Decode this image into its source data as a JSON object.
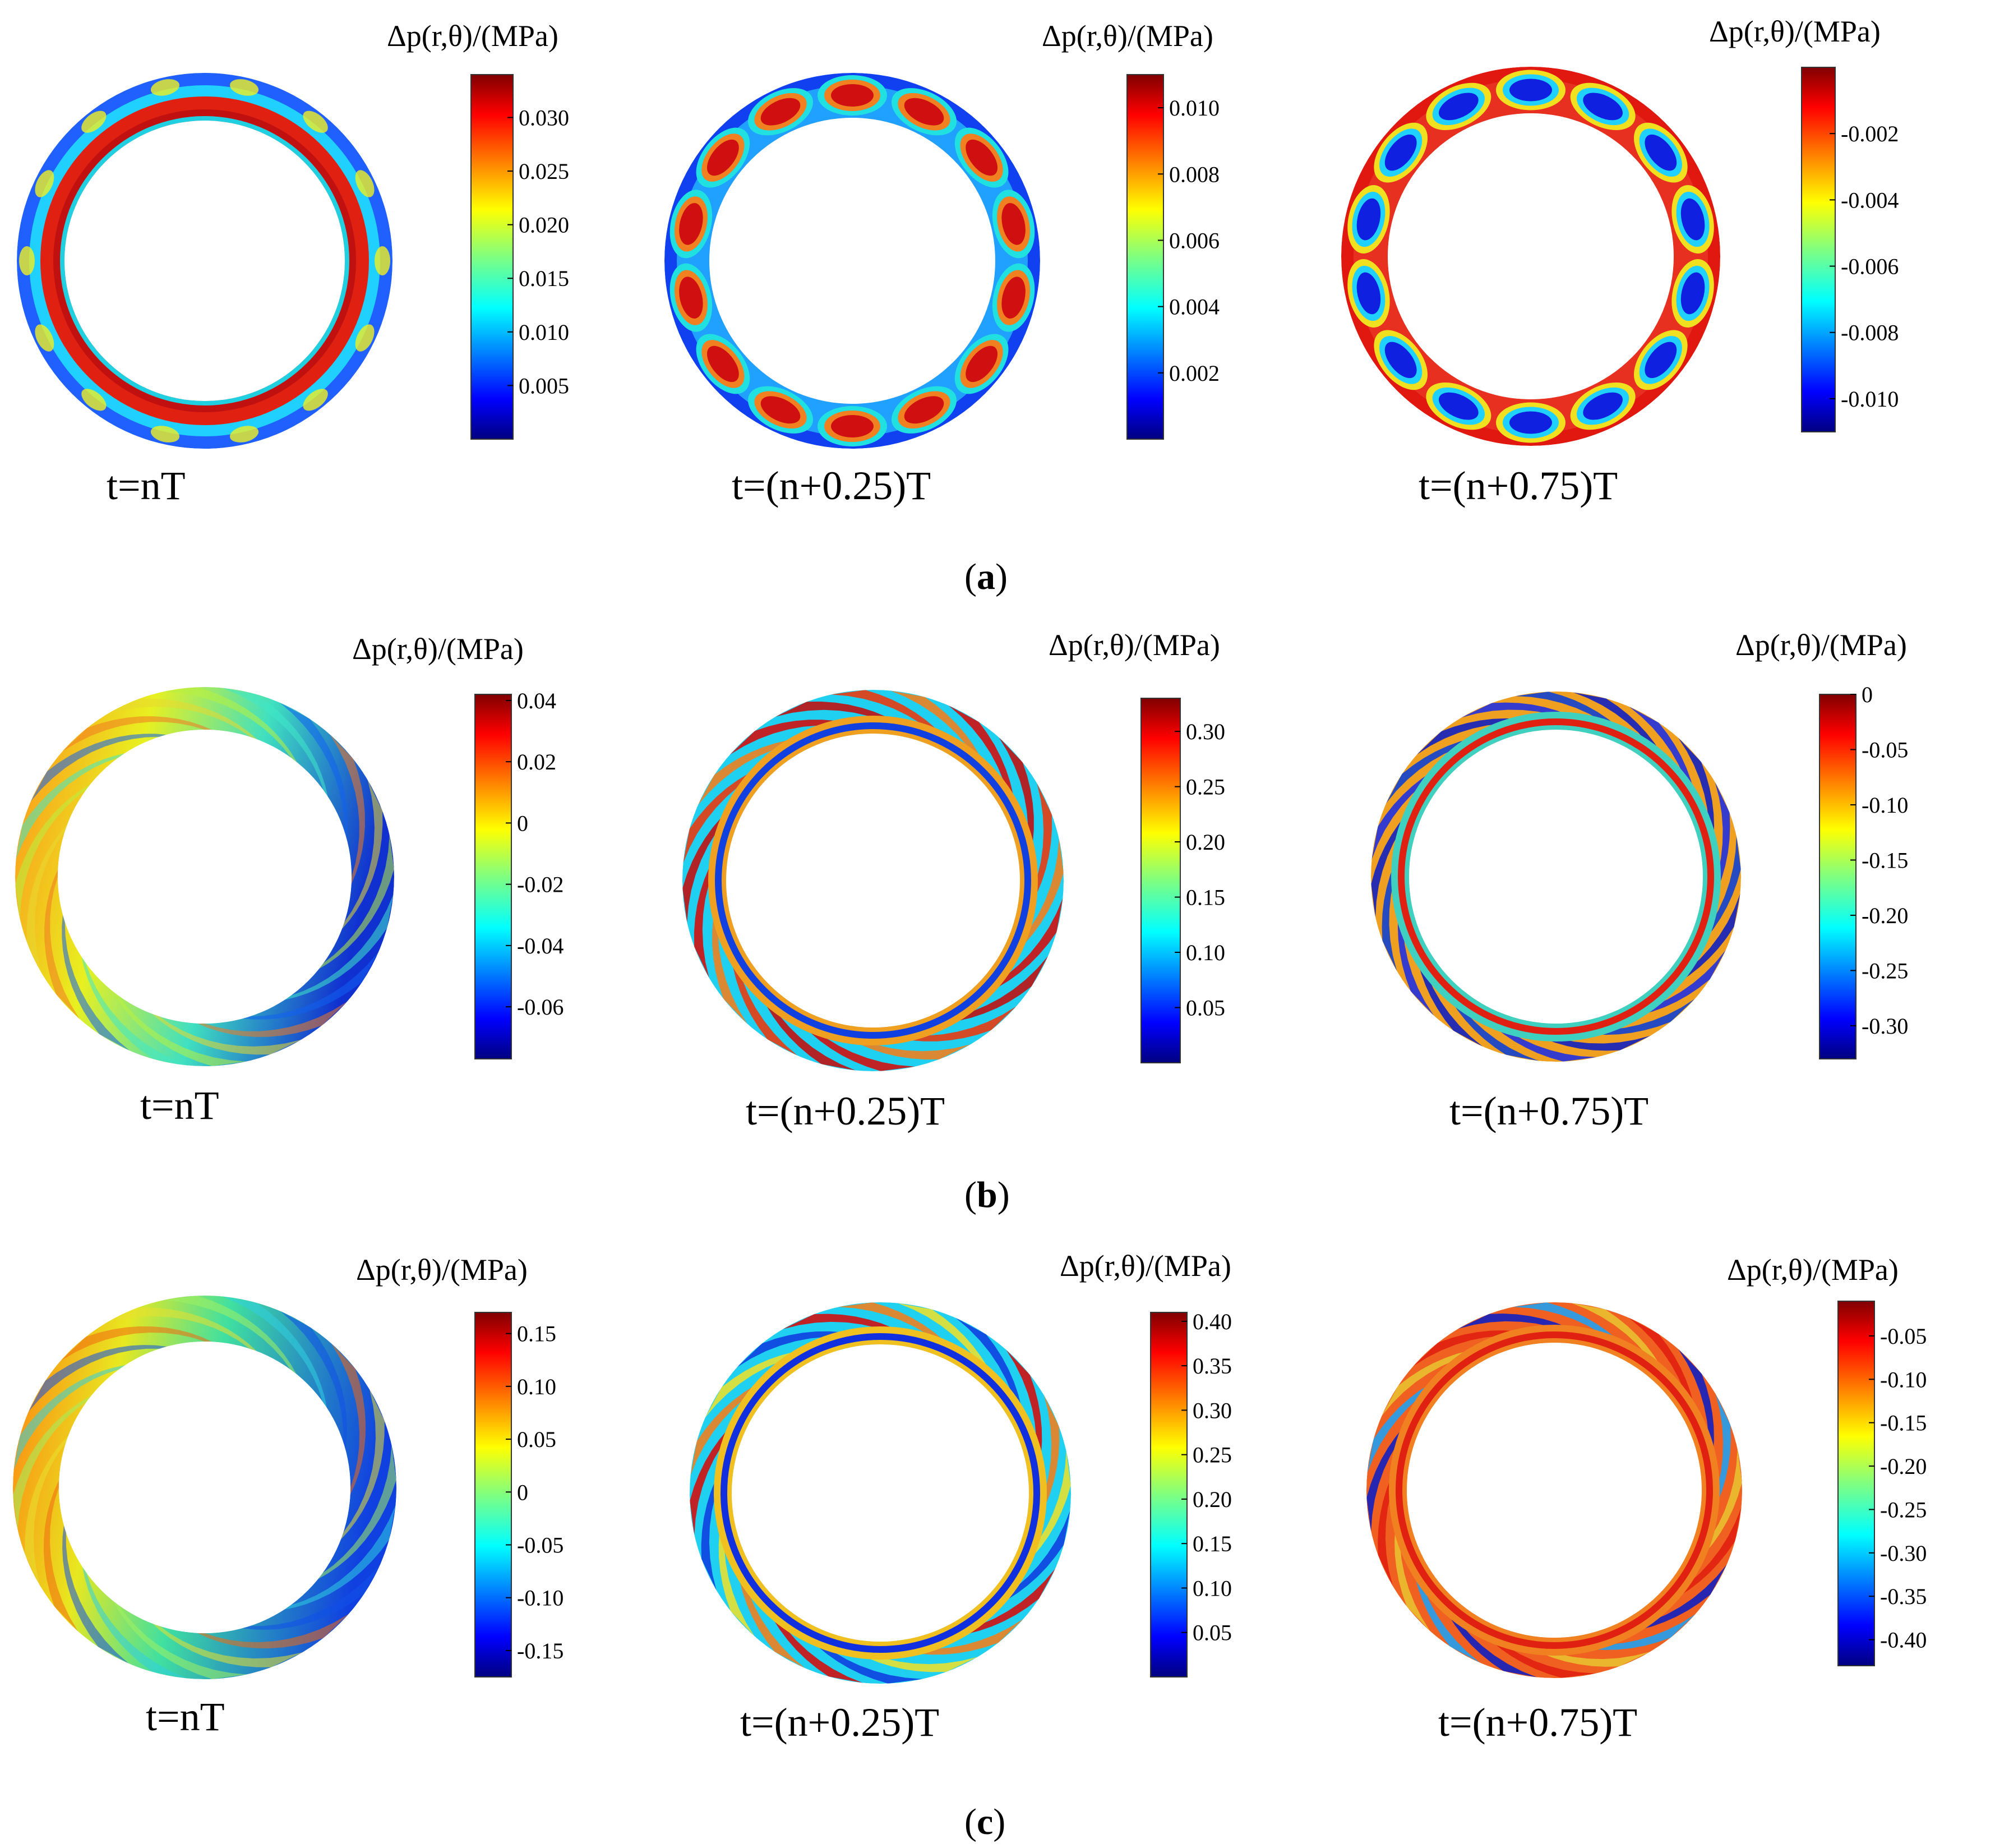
{
  "figure": {
    "row_labels": [
      "a",
      "b",
      "c"
    ],
    "unit_label": "Δp(r,θ)/(MPa)",
    "time_labels": [
      "t=nT",
      "t=(n+0.25)T",
      "t=(n+0.75)T"
    ]
  },
  "chart_data": [
    {
      "type": "heatmap",
      "row": "a",
      "title": "t=nT",
      "colorbar_label": "Δp(r,θ)/(MPa)",
      "pattern": "bands",
      "colorbar_range": [
        0.0,
        0.034
      ],
      "ticks": [
        0.03,
        0.025,
        0.02,
        0.015,
        0.01,
        0.005
      ],
      "tick_labels": [
        "0.030",
        "0.025",
        "0.020",
        "0.015",
        "0.010",
        "0.005"
      ]
    },
    {
      "type": "heatmap",
      "row": "a",
      "title": "t=(n+0.25)T",
      "colorbar_label": "Δp(r,θ)/(MPa)",
      "pattern": "pockets",
      "pocket_count": 14,
      "colorbar_range": [
        0.0,
        0.011
      ],
      "ticks": [
        0.01,
        0.008,
        0.006,
        0.004,
        0.002
      ],
      "tick_labels": [
        "0.010",
        "0.008",
        "0.006",
        "0.004",
        "0.002"
      ]
    },
    {
      "type": "heatmap",
      "row": "a",
      "title": "t=(n+0.75)T",
      "colorbar_label": "Δp(r,θ)/(MPa)",
      "pattern": "pockets",
      "pocket_count": 14,
      "colorbar_range": [
        -0.011,
        0.0
      ],
      "ticks": [
        -0.002,
        -0.004,
        -0.006,
        -0.008,
        -0.01
      ],
      "tick_labels": [
        "-0.002",
        "-0.004",
        "-0.006",
        "-0.008",
        "-0.010"
      ]
    },
    {
      "type": "heatmap",
      "row": "b",
      "title": "t=nT",
      "colorbar_label": "Δp(r,θ)/(MPa)",
      "pattern": "gradient",
      "blade_count": 20,
      "colorbar_range": [
        -0.077,
        0.042
      ],
      "ticks": [
        0.04,
        0.02,
        0,
        -0.02,
        -0.04,
        -0.06
      ],
      "tick_labels": [
        "0.04",
        "0.02",
        "0",
        "-0.02",
        "-0.04",
        "-0.06"
      ]
    },
    {
      "type": "heatmap",
      "row": "b",
      "title": "t=(n+0.25)T",
      "colorbar_label": "Δp(r,θ)/(MPa)",
      "pattern": "spiral",
      "blade_count": 20,
      "colorbar_range": [
        0.0,
        0.33
      ],
      "ticks": [
        0.3,
        0.25,
        0.2,
        0.15,
        0.1,
        0.05
      ],
      "tick_labels": [
        "0.30",
        "0.25",
        "0.20",
        "0.15",
        "0.10",
        "0.05"
      ]
    },
    {
      "type": "heatmap",
      "row": "b",
      "title": "t=(n+0.75)T",
      "colorbar_label": "Δp(r,θ)/(MPa)",
      "pattern": "spiral",
      "blade_count": 20,
      "colorbar_range": [
        -0.33,
        0.0
      ],
      "ticks": [
        0,
        -0.05,
        -0.1,
        -0.15,
        -0.2,
        -0.25,
        -0.3
      ],
      "tick_labels": [
        "0",
        "-0.05",
        "-0.10",
        "-0.15",
        "-0.20",
        "-0.25",
        "-0.30"
      ]
    },
    {
      "type": "heatmap",
      "row": "c",
      "title": "t=nT",
      "colorbar_label": "Δp(r,θ)/(MPa)",
      "pattern": "gradient",
      "blade_count": 20,
      "colorbar_range": [
        -0.175,
        0.17
      ],
      "ticks": [
        0.15,
        0.1,
        0.05,
        0,
        -0.05,
        -0.1,
        -0.15
      ],
      "tick_labels": [
        "0.15",
        "0.10",
        "0.05",
        "0",
        "-0.05",
        "-0.10",
        "-0.15"
      ]
    },
    {
      "type": "heatmap",
      "row": "c",
      "title": "t=(n+0.25)T",
      "colorbar_label": "Δp(r,θ)/(MPa)",
      "pattern": "spiral",
      "blade_count": 20,
      "colorbar_range": [
        0.0,
        0.41
      ],
      "ticks": [
        0.4,
        0.35,
        0.3,
        0.25,
        0.2,
        0.15,
        0.1,
        0.05
      ],
      "tick_labels": [
        "0.40",
        "0.35",
        "0.30",
        "0.25",
        "0.20",
        "0.15",
        "0.10",
        "0.05"
      ]
    },
    {
      "type": "heatmap",
      "row": "c",
      "title": "t=(n+0.75)T",
      "colorbar_label": "Δp(r,θ)/(MPa)",
      "pattern": "spiral",
      "blade_count": 20,
      "colorbar_range": [
        -0.43,
        -0.01
      ],
      "ticks": [
        -0.05,
        -0.1,
        -0.15,
        -0.2,
        -0.25,
        -0.3,
        -0.35,
        -0.4
      ],
      "tick_labels": [
        "-0.05",
        "-0.10",
        "-0.15",
        "-0.20",
        "-0.25",
        "-0.30",
        "-0.35",
        "-0.40"
      ]
    }
  ],
  "colors": {
    "jet": [
      "#000080",
      "#0000ff",
      "#0080ff",
      "#00ffff",
      "#80ff80",
      "#ffff00",
      "#ff8000",
      "#ff0000",
      "#800000"
    ]
  }
}
